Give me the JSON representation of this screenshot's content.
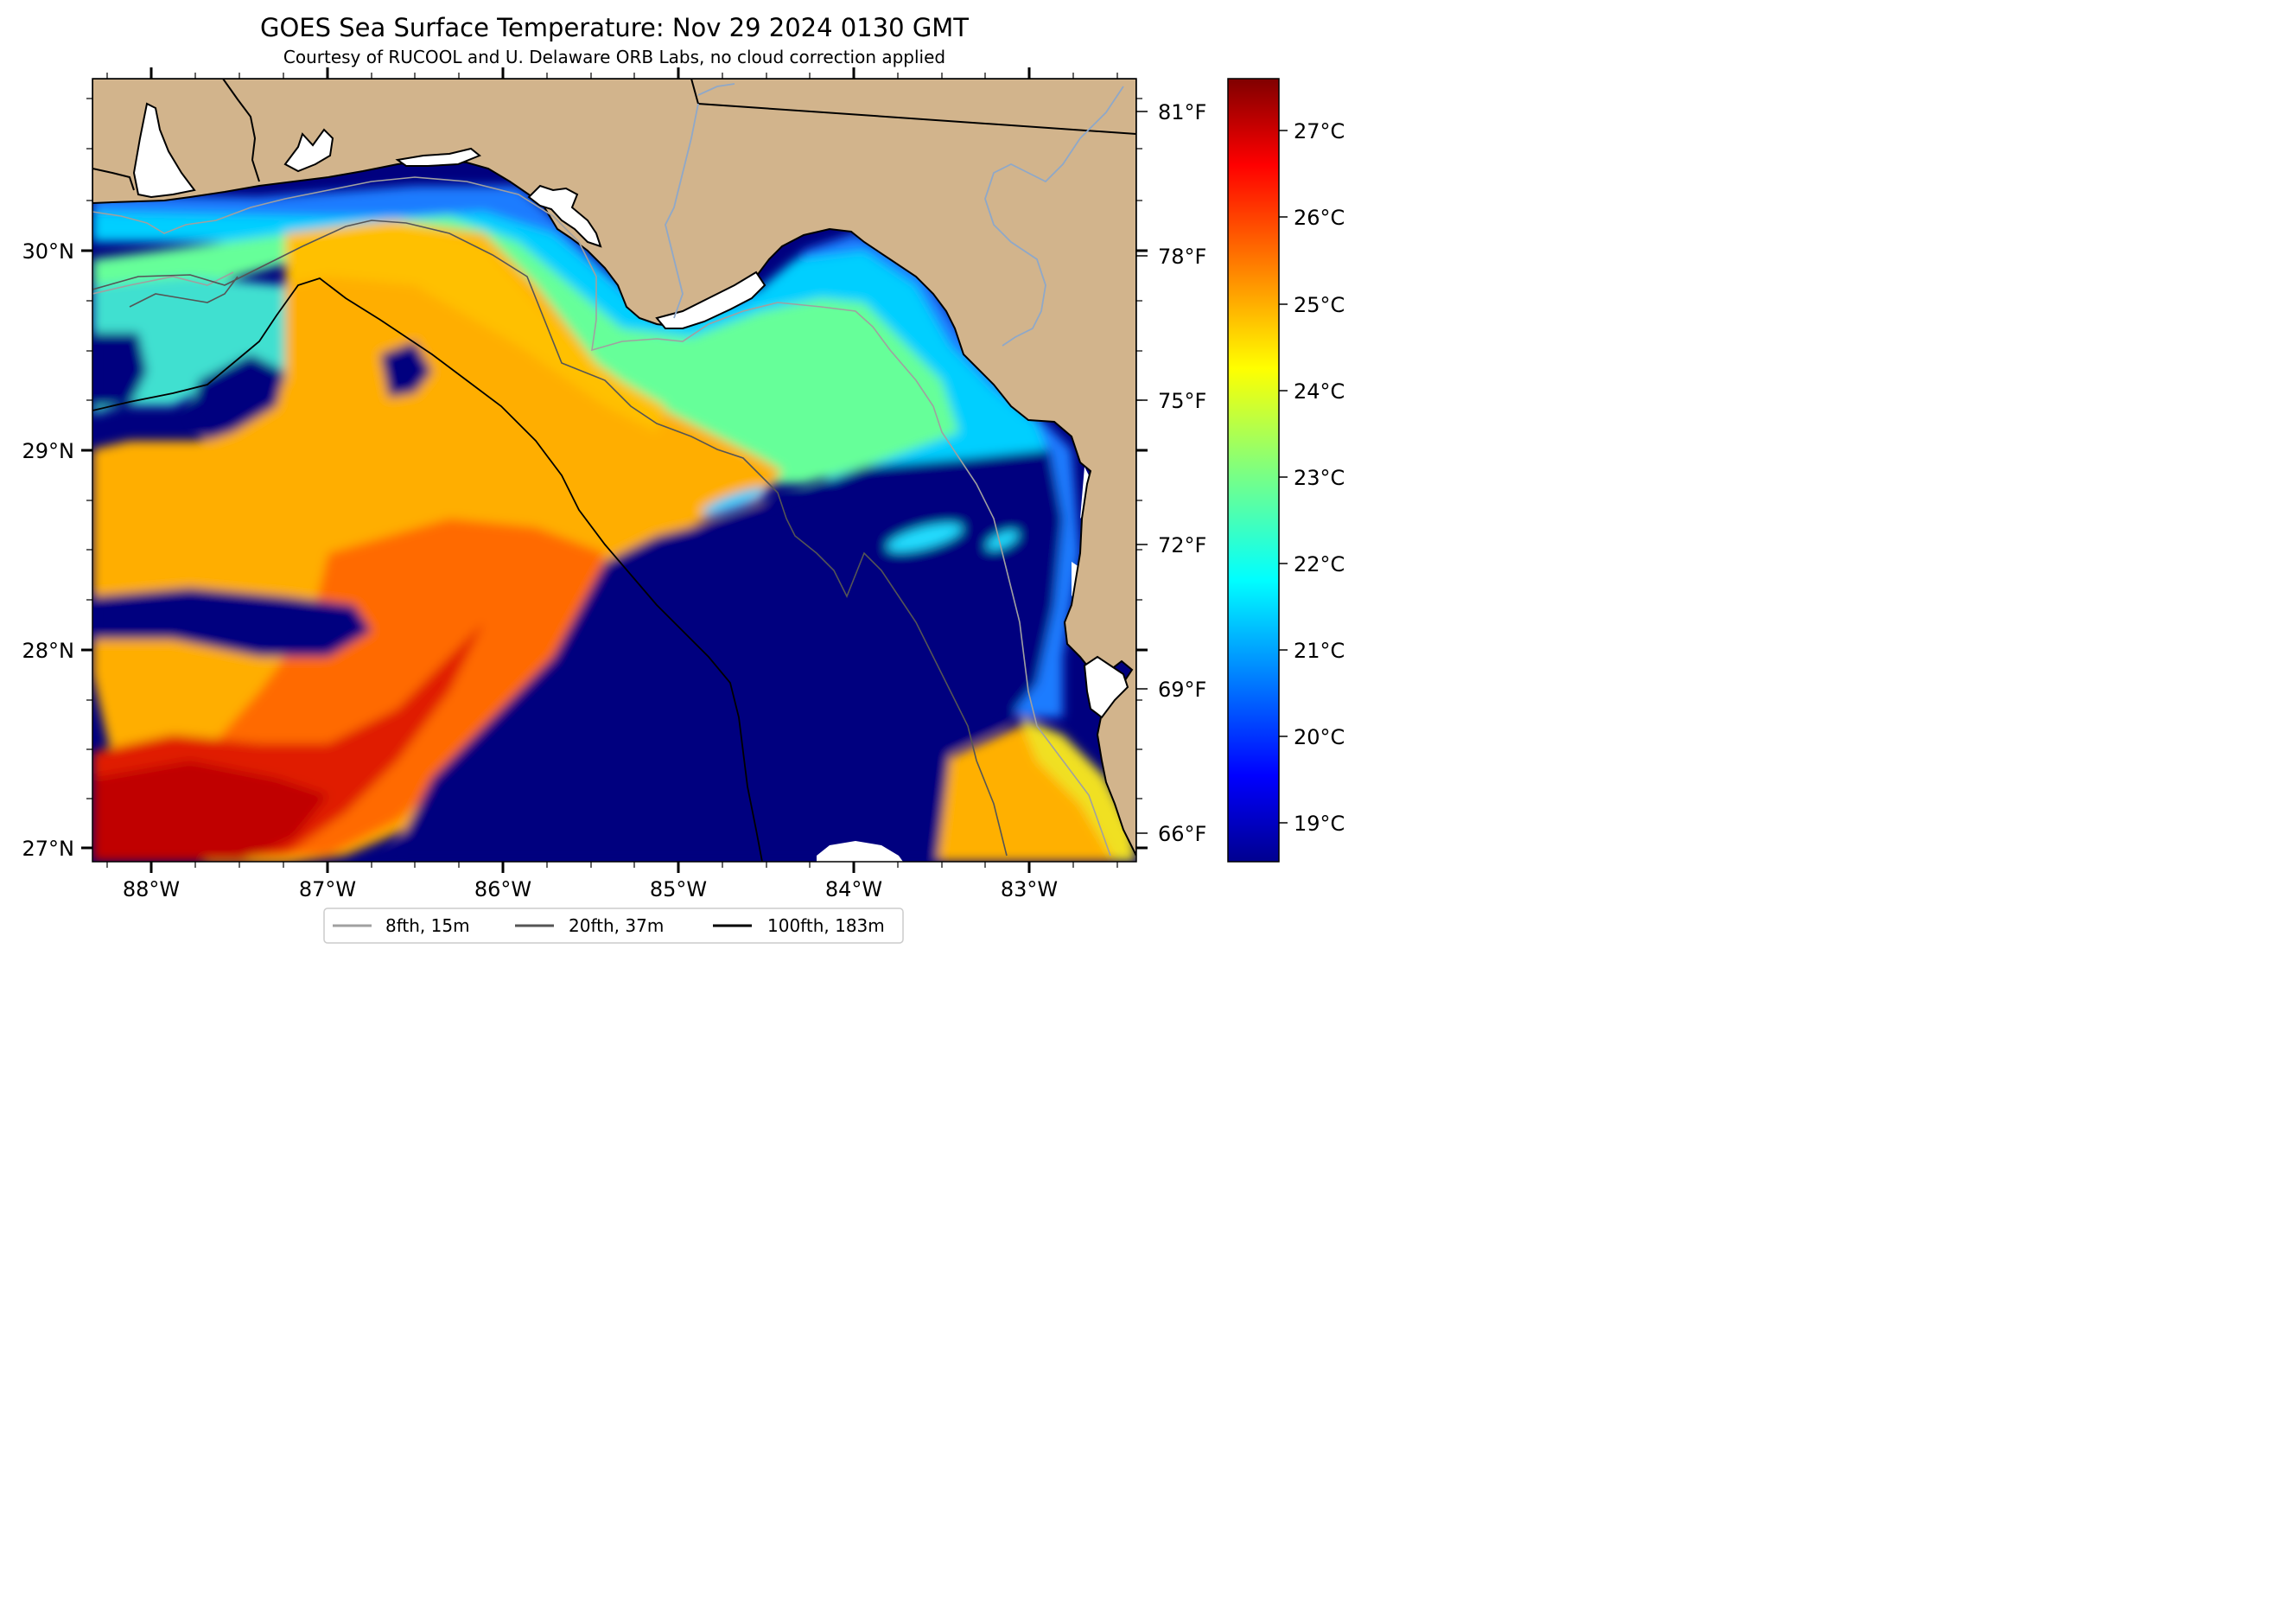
{
  "header": {
    "title": "GOES Sea Surface Temperature: Nov 29 2024 0130 GMT",
    "subtitle": "Courtesy of RUCOOL and U. Delaware ORB Labs, no cloud correction applied"
  },
  "map": {
    "lon_range": [
      -88.33,
      -82.38
    ],
    "lat_range": [
      26.93,
      30.85
    ],
    "lon_ticks": [
      "88°W",
      "87°W",
      "86°W",
      "85°W",
      "84°W",
      "83°W"
    ],
    "lat_ticks": [
      "30°N",
      "29°N",
      "28°N",
      "27°N"
    ],
    "fahrenheit_ticks": [
      "81°F",
      "78°F",
      "75°F",
      "72°F",
      "69°F",
      "66°F"
    ],
    "land_color": "#d2b48c",
    "no_data_color": "#ffffff"
  },
  "colorbar": {
    "colormap": "jet",
    "range_c": [
      18.6,
      27.6
    ],
    "ticks": [
      "27°C",
      "26°C",
      "25°C",
      "24°C",
      "23°C",
      "22°C",
      "21°C",
      "20°C",
      "19°C"
    ]
  },
  "legend": {
    "items": [
      {
        "label": "8fth, 15m",
        "color": "#a0a0a0"
      },
      {
        "label": "20fth, 37m",
        "color": "#555555"
      },
      {
        "label": "100fth, 183m",
        "color": "#000000"
      }
    ]
  }
}
